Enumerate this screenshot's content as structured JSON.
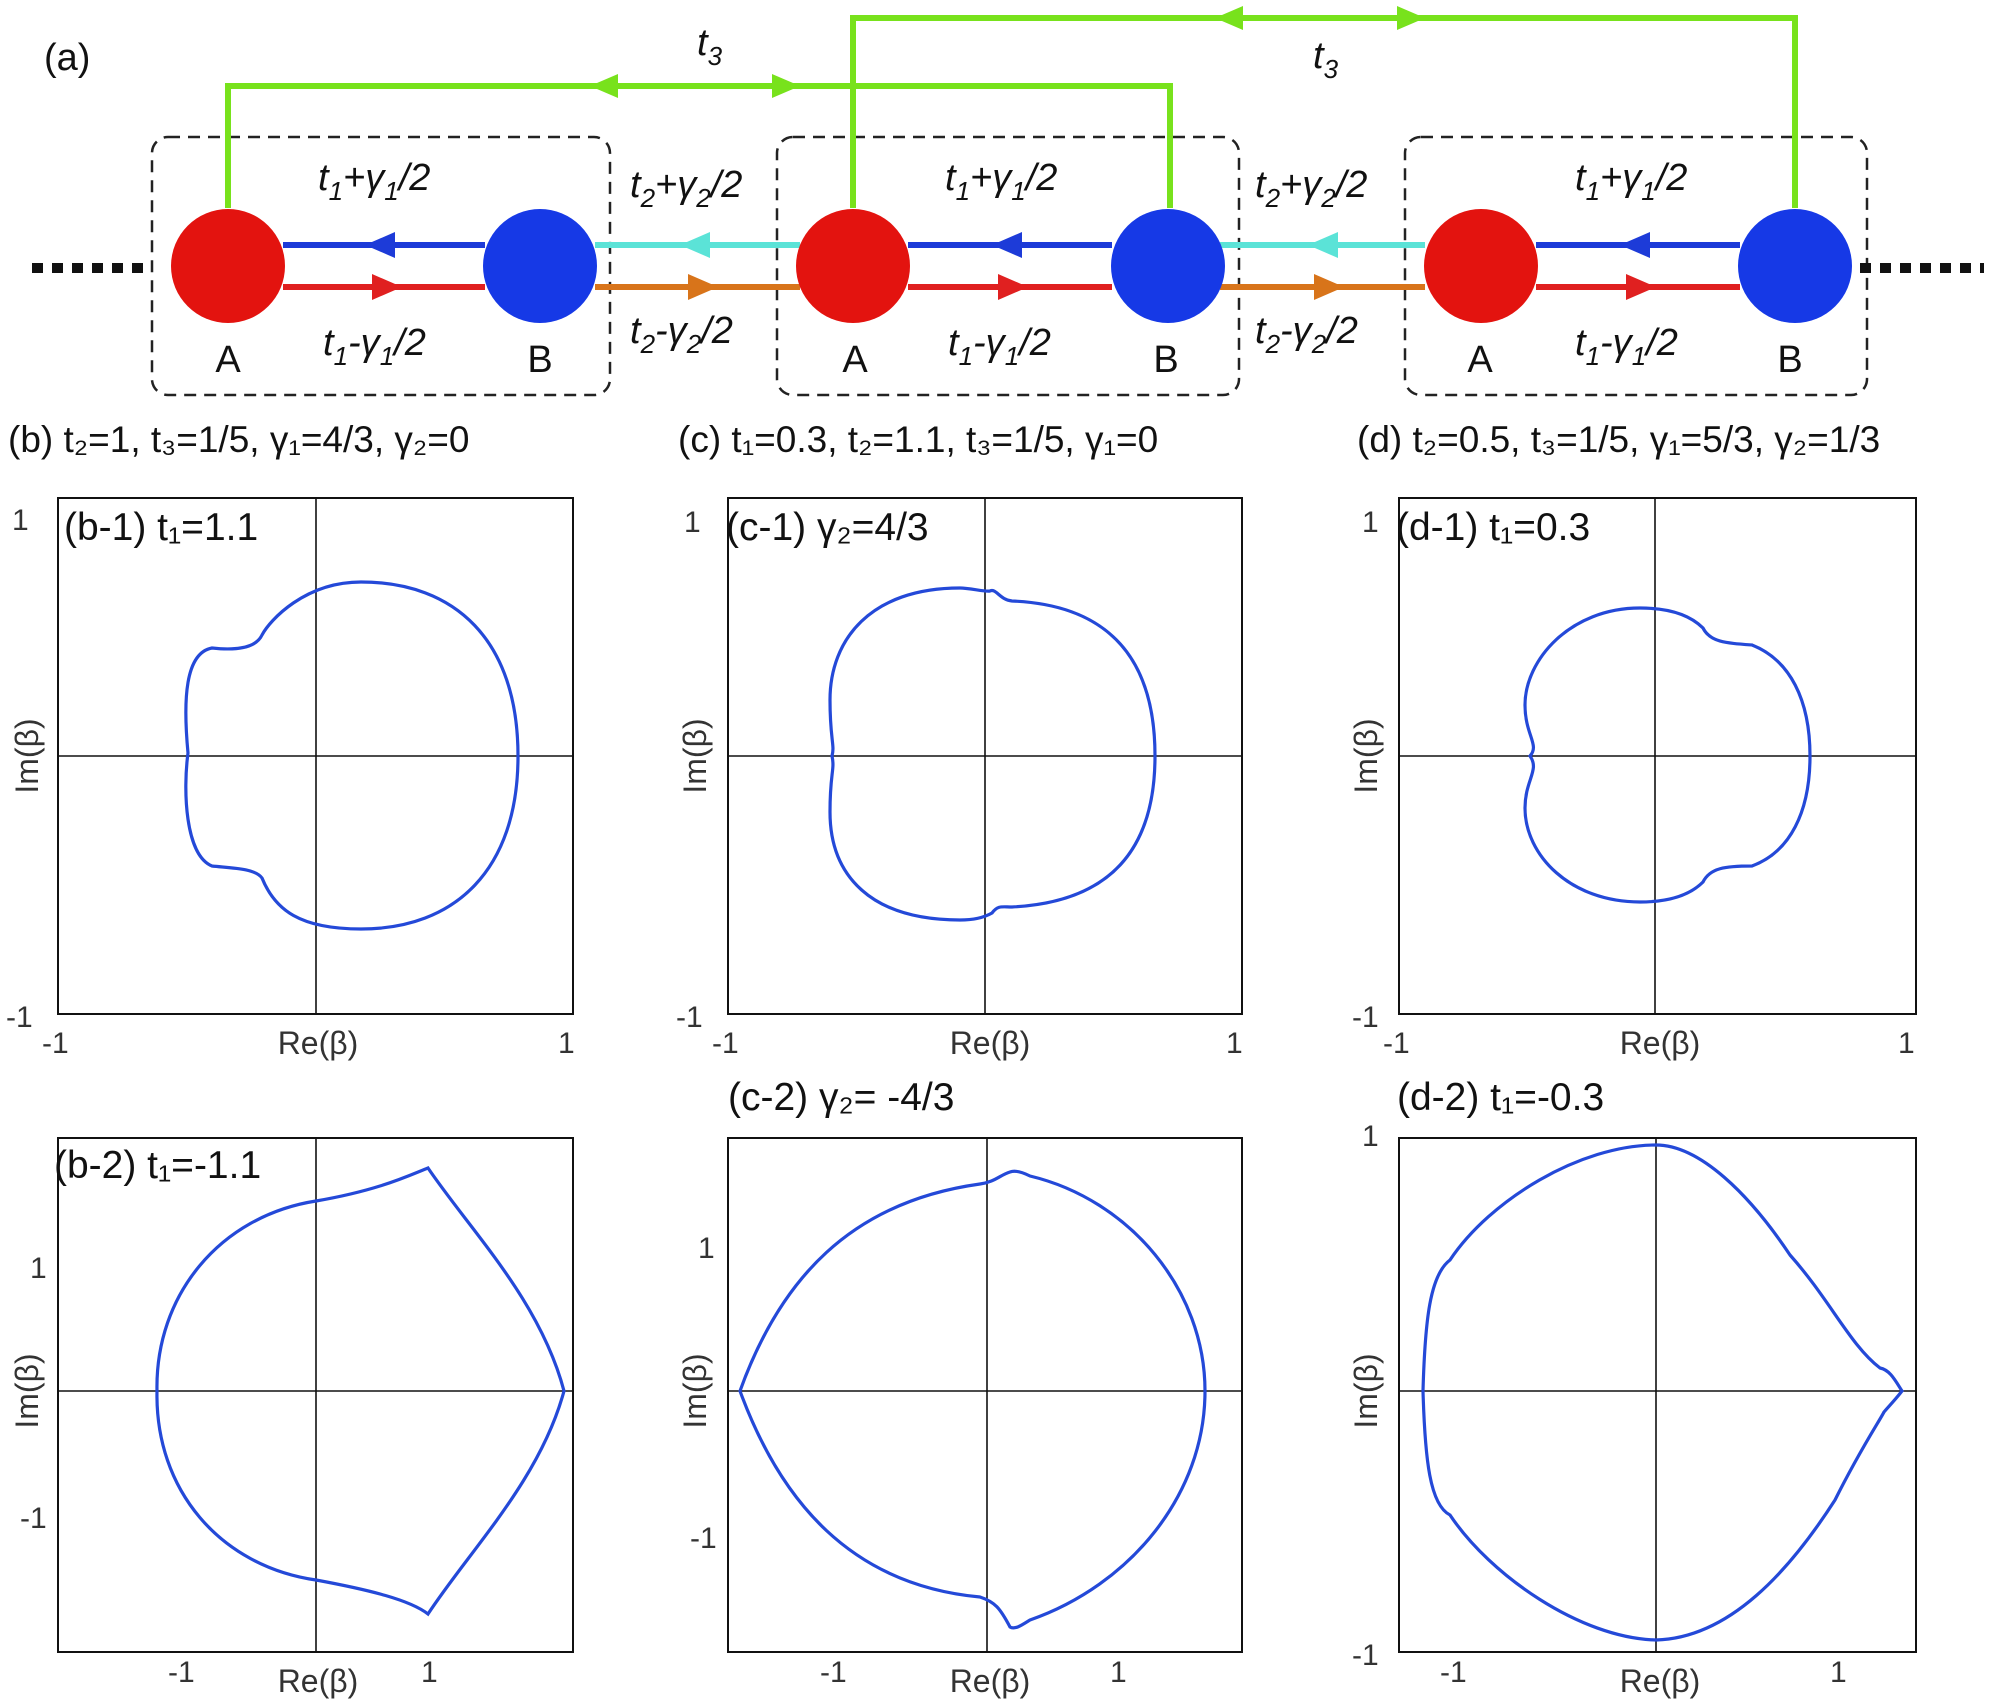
{
  "diagram": {
    "panel_label": "(a)",
    "node_labels": [
      "A",
      "B",
      "A",
      "B",
      "A",
      "B"
    ],
    "t3_label": "t",
    "t3_sub": "3",
    "intra_top": {
      "t": "t",
      "sub1": "1",
      "mid": "+γ",
      "sub2": "1",
      "end": "/2"
    },
    "intra_bottom": {
      "t": "t",
      "sub1": "1",
      "mid": "-γ",
      "sub2": "1",
      "end": "/2"
    },
    "inter_top": {
      "t": "t",
      "sub1": "2",
      "mid": "+γ",
      "sub2": "2",
      "end": "/2"
    },
    "inter_bottom": {
      "t": "t",
      "sub1": "2",
      "mid": "-γ",
      "sub2": "2",
      "end": "/2"
    },
    "colors": {
      "site_a": "#e3130f",
      "site_b": "#1639e6",
      "t3_link": "#78e21c",
      "intra_top_link": "#1d3bd8",
      "intra_bottom_link": "#e02020",
      "inter_top_link": "#5be3d7",
      "inter_bottom_link": "#d8741a"
    }
  },
  "headers": {
    "b": "(b) t₂=1, t₃=1/5, γ₁=4/3, γ₂=0",
    "c": "(c) t₁=0.3, t₂=1.1, t₃=1/5, γ₁=0",
    "d": "(d) t₂=0.5, t₃=1/5, γ₁=5/3, γ₂=1/3"
  },
  "panels": {
    "b1": {
      "title": "(b-1) t₁=1.1",
      "ylabel": "Im(β)",
      "xlabel": "Re(β)",
      "ticks": [
        "1",
        "-1",
        "-1",
        "1"
      ]
    },
    "c1": {
      "title": "(c-1) γ₂=4/3",
      "ylabel": "Im(β)",
      "xlabel": "Re(β)",
      "ticks": [
        "1",
        "-1",
        "-1",
        "1"
      ]
    },
    "d1": {
      "title": "(d-1) t₁=0.3",
      "ylabel": "Im(β)",
      "xlabel": "Re(β)",
      "ticks": [
        "1",
        "-1",
        "-1",
        "1"
      ]
    },
    "b2": {
      "title": "(b-2) t₁=-1.1",
      "ylabel": "Im(β)",
      "xlabel": "Re(β)",
      "ticks": [
        "1",
        "-1",
        "-1",
        "1"
      ]
    },
    "c2": {
      "title": "(c-2) γ₂= -4/3",
      "ylabel": "Im(β)",
      "xlabel": "Re(β)",
      "ticks": [
        "1",
        "-1",
        "-1",
        "1"
      ]
    },
    "d2": {
      "title": "(d-2) t₁=-0.3",
      "ylabel": "Im(β)",
      "xlabel": "Re(β)",
      "ticks": [
        "1",
        "-1",
        "-1",
        "1"
      ]
    }
  },
  "curve_color": "#2449d8"
}
